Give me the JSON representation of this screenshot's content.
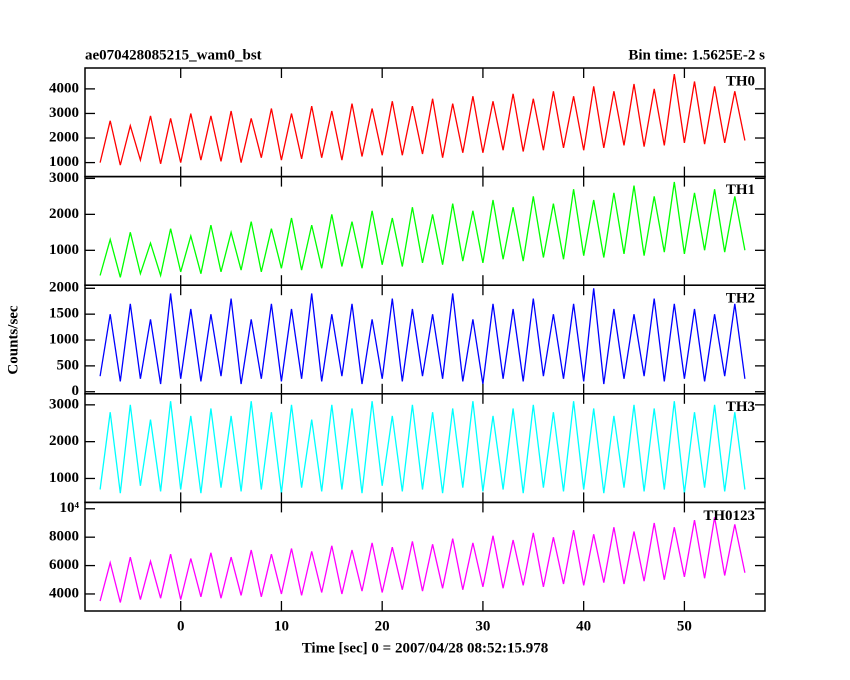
{
  "chart_data": [
    {
      "type": "line",
      "title": "ae070428085215_wam0_bst",
      "subtitle": "Bin time: 1.5625E-2 s",
      "ylabel": "Counts/sec",
      "series": [
        {
          "name": "TH0",
          "color": "#ff0000",
          "values": [
            1000,
            2700,
            900,
            2500,
            1100,
            2900,
            950,
            2800,
            1000,
            3000,
            1100,
            2900,
            1050,
            3100,
            1000,
            2800,
            1200,
            3200,
            1100,
            3000,
            1150,
            3300,
            1200,
            3100,
            1100,
            3400,
            1250,
            3200,
            1300,
            3500,
            1300,
            3300,
            1350,
            3600,
            1200,
            3400,
            1400,
            3700,
            1400,
            3500,
            1500,
            3800,
            1450,
            3600,
            1500,
            3900,
            1600,
            3700,
            1500,
            4100,
            1600,
            3900,
            1700,
            4200,
            1650,
            4000,
            1700,
            4600,
            1800,
            4300,
            1750,
            4100,
            1800,
            3900,
            1900
          ]
        }
      ],
      "ylim": [
        430,
        4850
      ],
      "yticks": [
        1000,
        2000,
        3000,
        4000
      ]
    },
    {
      "type": "line",
      "series": [
        {
          "name": "TH1",
          "color": "#00ff00",
          "values": [
            300,
            1300,
            250,
            1500,
            350,
            1200,
            300,
            1600,
            400,
            1400,
            350,
            1700,
            400,
            1500,
            450,
            1800,
            400,
            1600,
            500,
            1900,
            450,
            1700,
            500,
            2000,
            550,
            1800,
            500,
            2100,
            600,
            1900,
            550,
            2200,
            650,
            2000,
            600,
            2300,
            700,
            2100,
            650,
            2400,
            750,
            2200,
            700,
            2500,
            800,
            2300,
            750,
            2700,
            850,
            2400,
            800,
            2600,
            900,
            2800,
            850,
            2500,
            950,
            2900,
            900,
            2600,
            1000,
            2700,
            950,
            2500,
            1000
          ]
        }
      ],
      "ylim": [
        30,
        3050
      ],
      "yticks": [
        1000,
        2000,
        3000
      ]
    },
    {
      "type": "line",
      "series": [
        {
          "name": "TH2",
          "color": "#0000ff",
          "values": [
            300,
            1500,
            200,
            1700,
            250,
            1400,
            150,
            1900,
            250,
            1600,
            200,
            1500,
            300,
            1800,
            150,
            1400,
            250,
            1700,
            200,
            1600,
            250,
            1900,
            200,
            1500,
            300,
            1700,
            150,
            1400,
            250,
            1800,
            200,
            1600,
            300,
            1500,
            250,
            1900,
            200,
            1400,
            150,
            1700,
            250,
            1600,
            200,
            1800,
            300,
            1500,
            250,
            1700,
            200,
            2000,
            150,
            1600,
            250,
            1500,
            300,
            1800,
            200,
            1700,
            250,
            1600,
            200,
            1500,
            300,
            1700,
            250
          ]
        }
      ],
      "ylim": [
        -40,
        2060
      ],
      "yticks": [
        0,
        500,
        1000,
        1500,
        2000
      ]
    },
    {
      "type": "line",
      "series": [
        {
          "name": "TH3",
          "color": "#00ffff",
          "values": [
            700,
            2800,
            600,
            3000,
            800,
            2600,
            650,
            3100,
            700,
            2700,
            600,
            2900,
            750,
            2700,
            650,
            3100,
            700,
            2800,
            600,
            3000,
            750,
            2600,
            650,
            3000,
            700,
            2900,
            600,
            3100,
            800,
            2700,
            650,
            3000,
            700,
            2800,
            600,
            2900,
            750,
            3100,
            650,
            2700,
            700,
            2900,
            600,
            3000,
            750,
            2800,
            650,
            3100,
            700,
            2900,
            600,
            2700,
            750,
            3000,
            650,
            2900,
            700,
            3100,
            600,
            2800,
            750,
            3000,
            650,
            2800,
            700
          ]
        }
      ],
      "ylim": [
        350,
        3300
      ],
      "yticks": [
        1000,
        2000,
        3000
      ]
    },
    {
      "type": "line",
      "xlabel": "Time [sec] 0 = 2007/04/28 08:52:15.978",
      "x": [
        -8,
        -7,
        -6,
        -5,
        -4,
        -3,
        -2,
        -1,
        0,
        1,
        2,
        3,
        4,
        5,
        6,
        7,
        8,
        9,
        10,
        11,
        12,
        13,
        14,
        15,
        16,
        17,
        18,
        19,
        20,
        21,
        22,
        23,
        24,
        25,
        26,
        27,
        28,
        29,
        30,
        31,
        32,
        33,
        34,
        35,
        36,
        37,
        38,
        39,
        40,
        41,
        42,
        43,
        44,
        45,
        46,
        47,
        48,
        49,
        50,
        51,
        52,
        53,
        54,
        55,
        56
      ],
      "series": [
        {
          "name": "TH0123",
          "color": "#ff00ff",
          "values": [
            3500,
            6200,
            3400,
            6600,
            3600,
            6300,
            3700,
            6800,
            3600,
            6500,
            3800,
            6900,
            3700,
            6600,
            3900,
            7100,
            3800,
            6800,
            4000,
            7200,
            3900,
            7000,
            4100,
            7400,
            4000,
            7100,
            4200,
            7600,
            4100,
            7300,
            4300,
            7700,
            4200,
            7500,
            4400,
            7900,
            4300,
            7600,
            4500,
            8100,
            4400,
            7800,
            4600,
            8300,
            4500,
            8000,
            4700,
            8500,
            4600,
            8200,
            4800,
            8700,
            4700,
            8400,
            4900,
            9000,
            5000,
            8700,
            5200,
            9200,
            5100,
            9400,
            5300,
            8900,
            5500
          ]
        }
      ],
      "ylim": [
        2800,
        10450
      ],
      "yticks": [
        4000,
        6000,
        8000,
        {
          "value": 10000,
          "label": "10⁴"
        }
      ],
      "xlim": [
        -9.5,
        58
      ],
      "xticks": [
        0,
        10,
        20,
        30,
        40,
        50
      ]
    }
  ]
}
